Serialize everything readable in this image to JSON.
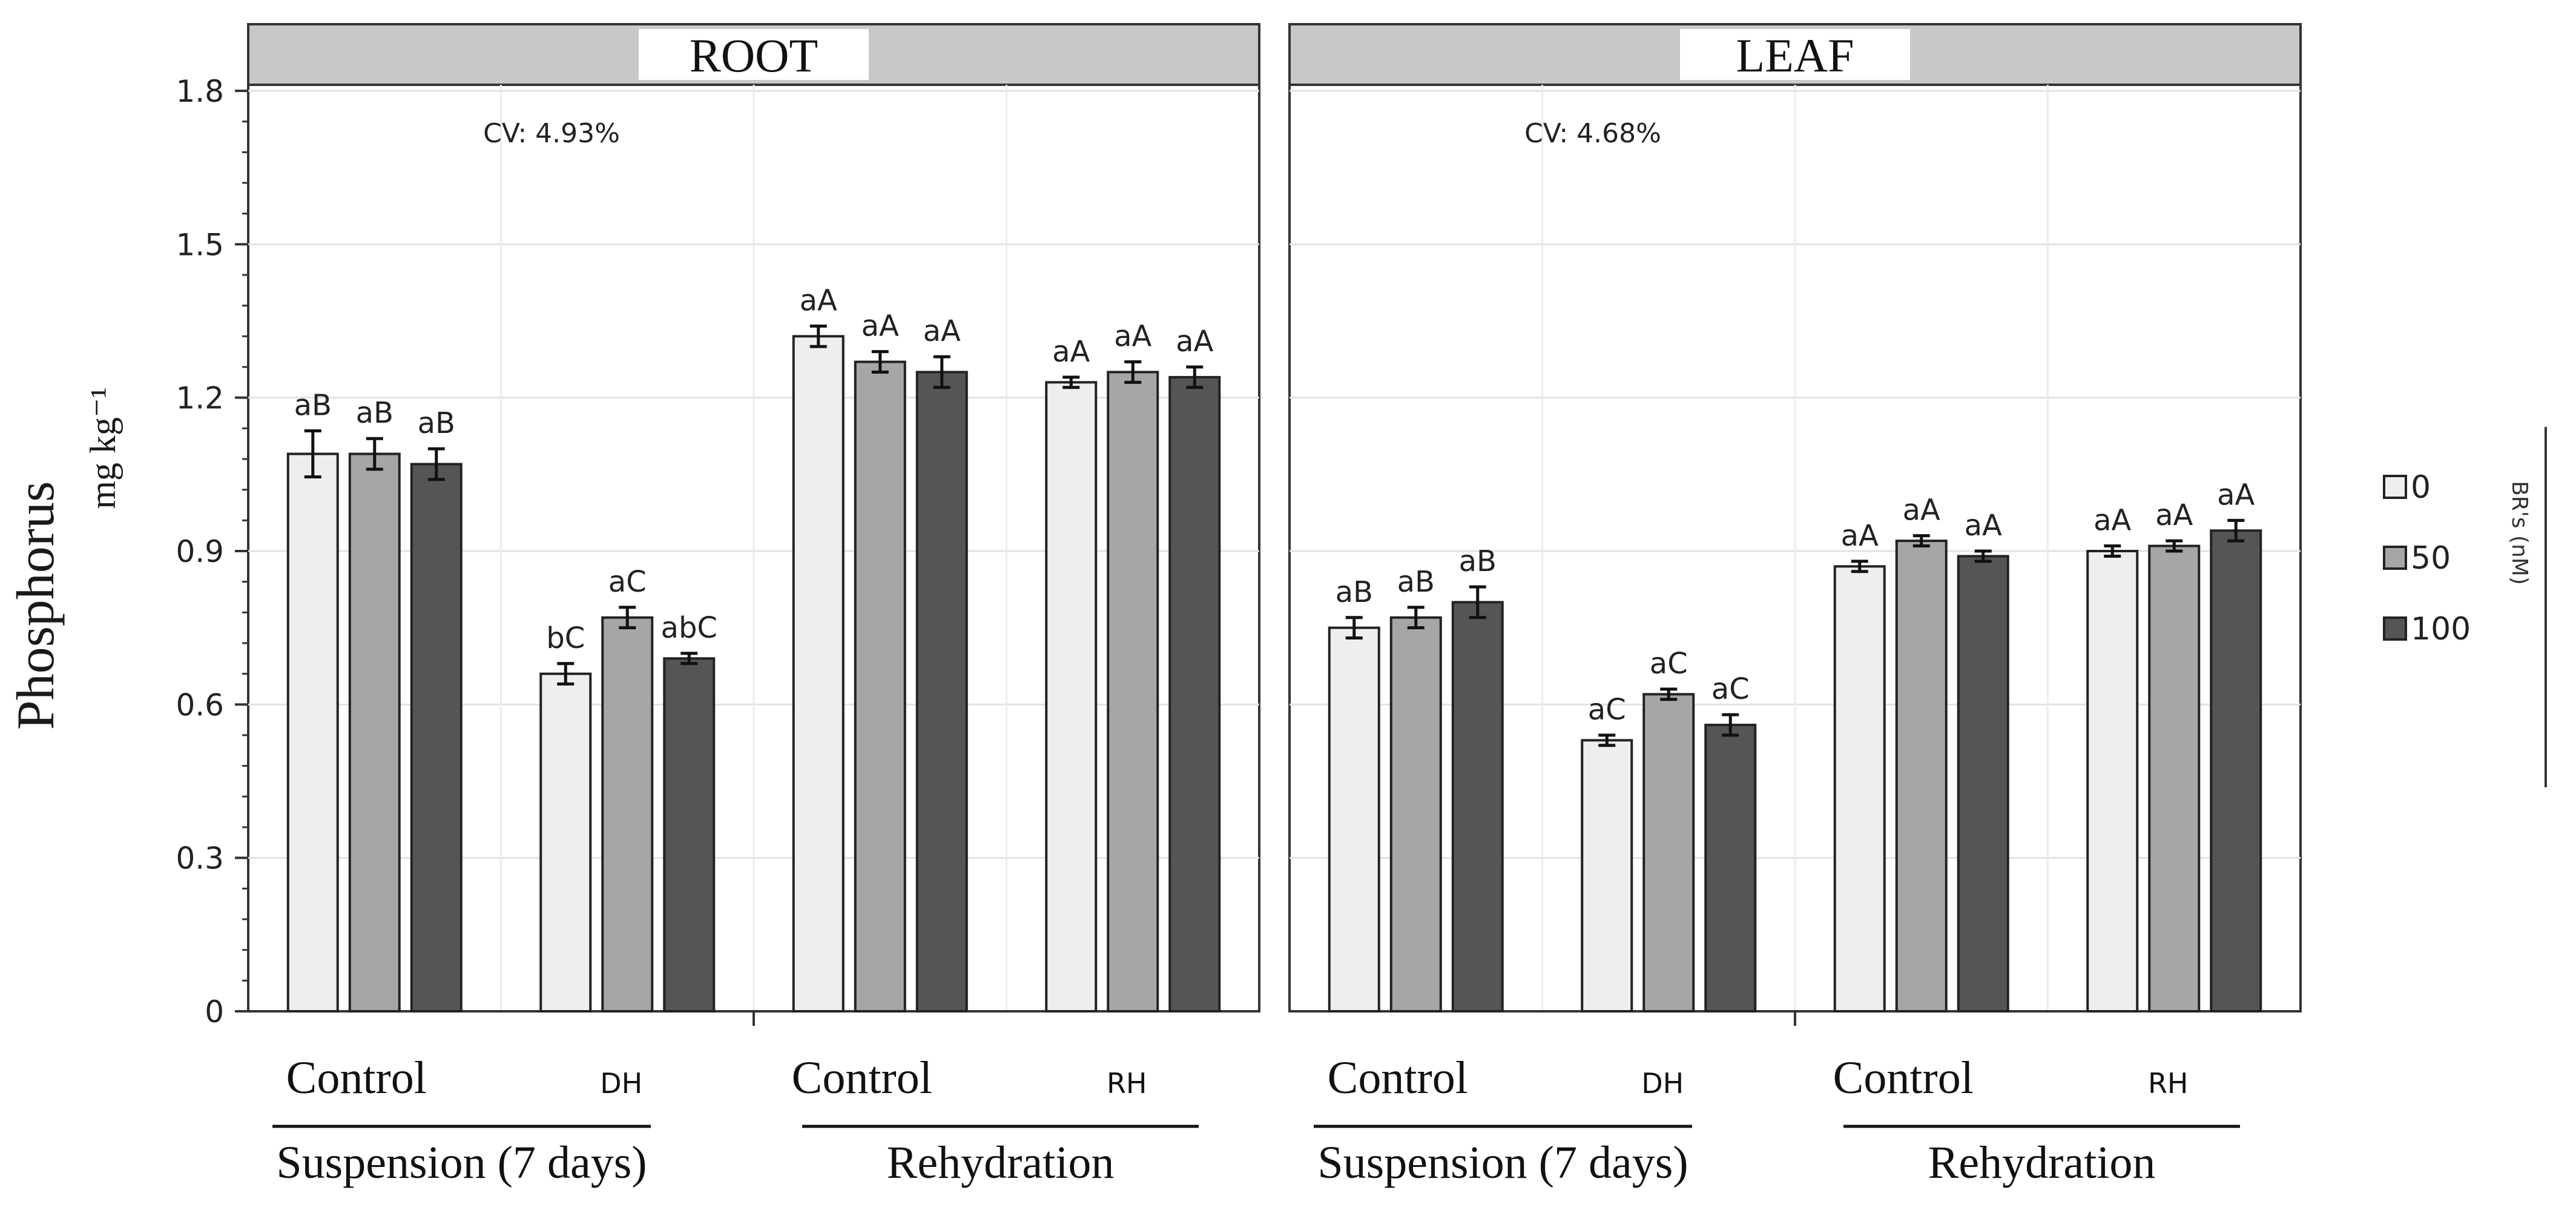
{
  "figure": {
    "y_axis_label": "Phosphorus",
    "y_axis_unit": "mg kg⁻¹",
    "legend_title": "BR's (nM)",
    "legend_items": [
      {
        "label": "0",
        "color": "#eeeeee"
      },
      {
        "label": "50",
        "color": "#a6a6a6"
      },
      {
        "label": "100",
        "color": "#555555"
      }
    ],
    "groups": [
      "Control",
      "DH",
      "Control",
      "RH"
    ],
    "group_labels": [
      "Suspension (7 days)",
      "Rehydration"
    ]
  },
  "chart_data": [
    {
      "type": "bar",
      "title": "ROOT",
      "annotation": "CV: 4.93%",
      "ylabel": "Phosphorus mg kg⁻¹",
      "ylim": [
        0,
        1.8
      ],
      "yticks": [
        "0",
        "0.3",
        "0.6",
        "0.9",
        "1.2",
        "1.5",
        "1.8"
      ],
      "ytick_values": [
        0,
        0.3,
        0.6,
        0.9,
        1.2,
        1.5,
        1.8
      ],
      "categories": [
        "Control",
        "DH",
        "Control",
        "RH"
      ],
      "series": [
        {
          "name": "0",
          "values": [
            1.09,
            0.66,
            1.32,
            1.23
          ],
          "errors": [
            0.045,
            0.02,
            0.02,
            0.01
          ],
          "labels": [
            "aB",
            "bC",
            "aA",
            "aA"
          ]
        },
        {
          "name": "50",
          "values": [
            1.09,
            0.77,
            1.27,
            1.25
          ],
          "errors": [
            0.03,
            0.02,
            0.02,
            0.02
          ],
          "labels": [
            "aB",
            "aC",
            "aA",
            "aA"
          ]
        },
        {
          "name": "100",
          "values": [
            1.07,
            0.69,
            1.25,
            1.24
          ],
          "errors": [
            0.03,
            0.01,
            0.03,
            0.02
          ],
          "labels": [
            "aB",
            "abC",
            "aA",
            "aA"
          ]
        }
      ]
    },
    {
      "type": "bar",
      "title": "LEAF",
      "annotation": "CV: 4.68%",
      "ylabel": "Phosphorus mg kg⁻¹",
      "ylim": [
        0,
        1.8
      ],
      "categories": [
        "Control",
        "DH",
        "Control",
        "RH"
      ],
      "series": [
        {
          "name": "0",
          "values": [
            0.75,
            0.53,
            0.87,
            0.9
          ],
          "errors": [
            0.02,
            0.01,
            0.01,
            0.01
          ],
          "labels": [
            "aB",
            "aC",
            "aA",
            "aA"
          ]
        },
        {
          "name": "50",
          "values": [
            0.77,
            0.62,
            0.92,
            0.91
          ],
          "errors": [
            0.02,
            0.01,
            0.01,
            0.01
          ],
          "labels": [
            "aB",
            "aC",
            "aA",
            "aA"
          ]
        },
        {
          "name": "100",
          "values": [
            0.8,
            0.56,
            0.89,
            0.94
          ],
          "errors": [
            0.03,
            0.02,
            0.01,
            0.02
          ],
          "labels": [
            "aB",
            "aC",
            "aA",
            "aA"
          ]
        }
      ]
    }
  ]
}
